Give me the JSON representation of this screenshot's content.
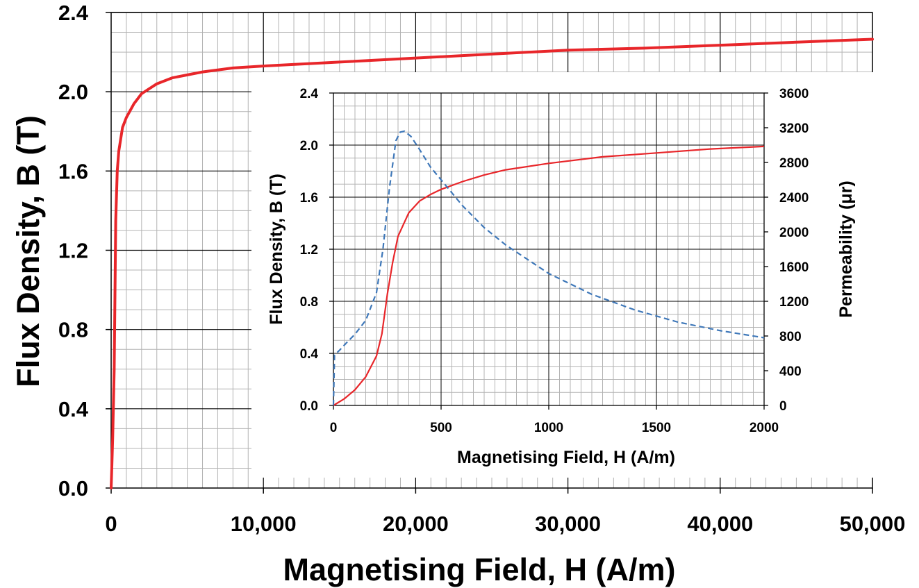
{
  "chart_data": [
    {
      "type": "line",
      "xlabel": "Magnetising Field, H (A/m)",
      "ylabel": "Flux Density, B (T)",
      "xlim": [
        0,
        50000
      ],
      "ylim": [
        0,
        2.4
      ],
      "x_ticks": [
        "0",
        "10,000",
        "20,000",
        "30,000",
        "40,000",
        "50,000"
      ],
      "y_ticks": [
        "0.0",
        "0.4",
        "0.8",
        "1.2",
        "1.6",
        "2.0",
        "2.4"
      ],
      "grid": true,
      "series": [
        {
          "color": "#e8262a",
          "style": "solid",
          "x": [
            0,
            50,
            100,
            200,
            300,
            400,
            500,
            750,
            1000,
            1500,
            2000,
            3000,
            4000,
            6000,
            8000,
            10000,
            15000,
            20000,
            25000,
            30000,
            35000,
            40000,
            45000,
            50000
          ],
          "y": [
            0,
            0.12,
            0.25,
            0.6,
            1.35,
            1.6,
            1.7,
            1.82,
            1.87,
            1.94,
            1.99,
            2.04,
            2.07,
            2.1,
            2.12,
            2.13,
            2.15,
            2.17,
            2.19,
            2.21,
            2.22,
            2.235,
            2.25,
            2.265
          ]
        }
      ]
    },
    {
      "type": "line",
      "xlabel": "Magnetising Field, H (A/m)",
      "ylabel": "Flux Density, B (T)",
      "ylabel_right": "Permeability (μr)",
      "xlim": [
        0,
        2000
      ],
      "ylim": [
        0,
        2.4
      ],
      "ylim_right": [
        0,
        3600
      ],
      "x_ticks": [
        "0",
        "500",
        "1000",
        "1500",
        "2000"
      ],
      "y_ticks": [
        "0.0",
        "0.4",
        "0.8",
        "1.2",
        "1.6",
        "2.0",
        "2.4"
      ],
      "y_ticks_right": [
        "0",
        "400",
        "800",
        "1200",
        "1600",
        "2000",
        "2400",
        "2800",
        "3200",
        "3600"
      ],
      "grid": true,
      "series": [
        {
          "color": "#e8262a",
          "style": "solid",
          "axis": "left",
          "x": [
            0,
            50,
            100,
            150,
            200,
            225,
            250,
            275,
            300,
            350,
            400,
            450,
            500,
            600,
            700,
            800,
            1000,
            1250,
            1500,
            1750,
            2000
          ],
          "y": [
            0,
            0.05,
            0.12,
            0.22,
            0.38,
            0.55,
            0.85,
            1.1,
            1.3,
            1.48,
            1.57,
            1.62,
            1.66,
            1.72,
            1.77,
            1.81,
            1.86,
            1.91,
            1.94,
            1.97,
            1.99
          ]
        },
        {
          "color": "#3f78b9",
          "style": "dashed",
          "axis": "right",
          "x": [
            0,
            5,
            30,
            60,
            100,
            150,
            200,
            230,
            260,
            290,
            310,
            330,
            360,
            400,
            450,
            500,
            600,
            700,
            800,
            1000,
            1200,
            1400,
            1600,
            1800,
            2000
          ],
          "y": [
            0,
            580,
            640,
            720,
            820,
            980,
            1300,
            1800,
            2500,
            3050,
            3150,
            3160,
            3100,
            2950,
            2750,
            2600,
            2300,
            2050,
            1850,
            1520,
            1280,
            1100,
            960,
            860,
            780
          ]
        }
      ]
    }
  ]
}
